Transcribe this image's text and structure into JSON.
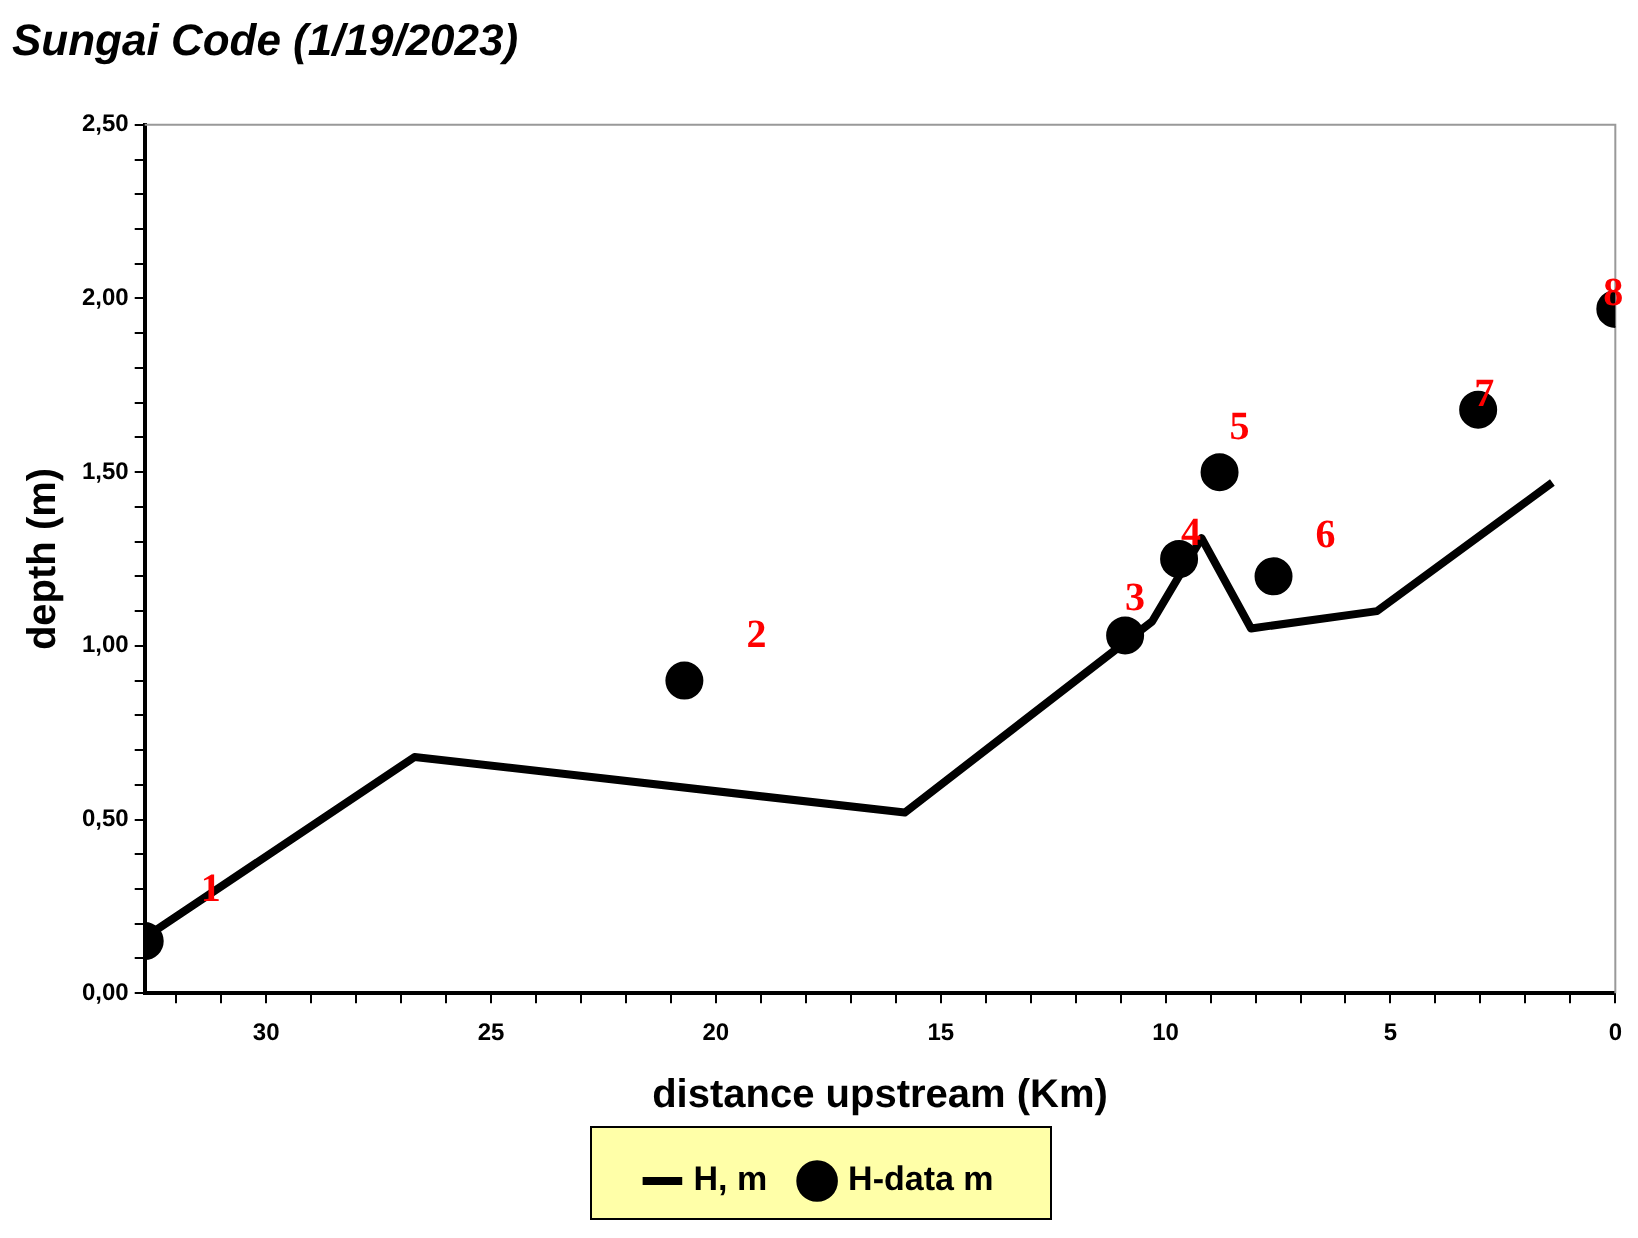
{
  "chart_data": {
    "type": "line",
    "title": "Sungai Code (1/19/2023)",
    "xlabel": "distance upstream (Km)",
    "ylabel": "depth (m)",
    "xlim": [
      32.7,
      0
    ],
    "ylim": [
      0,
      2.5
    ],
    "xticks": [
      {
        "value": 32,
        "label": null
      },
      {
        "value": 31,
        "label": null
      },
      30,
      {
        "value": 29,
        "label": null
      },
      {
        "value": 28,
        "label": null
      },
      {
        "value": 27,
        "label": null
      },
      {
        "value": 26,
        "label": null
      },
      25,
      {
        "value": 24,
        "label": null
      },
      {
        "value": 23,
        "label": null
      },
      {
        "value": 22,
        "label": null
      },
      {
        "value": 21,
        "label": null
      },
      20,
      {
        "value": 19,
        "label": null
      },
      {
        "value": 18,
        "label": null
      },
      {
        "value": 17,
        "label": null
      },
      {
        "value": 16,
        "label": null
      },
      15,
      {
        "value": 14,
        "label": null
      },
      {
        "value": 13,
        "label": null
      },
      {
        "value": 12,
        "label": null
      },
      {
        "value": 11,
        "label": null
      },
      10,
      {
        "value": 9,
        "label": null
      },
      {
        "value": 8,
        "label": null
      },
      {
        "value": 7,
        "label": null
      },
      {
        "value": 6,
        "label": null
      },
      5,
      {
        "value": 4,
        "label": null
      },
      {
        "value": 3,
        "label": null
      },
      {
        "value": 2,
        "label": null
      },
      {
        "value": 1,
        "label": null
      },
      0
    ],
    "yticks": [
      {
        "value": 0,
        "label": "0,00"
      },
      {
        "value": 0.1,
        "label": null
      },
      {
        "value": 0.2,
        "label": null
      },
      {
        "value": 0.3,
        "label": null
      },
      {
        "value": 0.4,
        "label": null
      },
      {
        "value": 0.5,
        "label": "0,50"
      },
      {
        "value": 0.6,
        "label": null
      },
      {
        "value": 0.7,
        "label": null
      },
      {
        "value": 0.8,
        "label": null
      },
      {
        "value": 0.9,
        "label": null
      },
      {
        "value": 1,
        "label": "1,00"
      },
      {
        "value": 1.1,
        "label": null
      },
      {
        "value": 1.2,
        "label": null
      },
      {
        "value": 1.3,
        "label": null
      },
      {
        "value": 1.4,
        "label": null
      },
      {
        "value": 1.5,
        "label": "1,50"
      },
      {
        "value": 1.6,
        "label": null
      },
      {
        "value": 1.7,
        "label": null
      },
      {
        "value": 1.8,
        "label": null
      },
      {
        "value": 1.9,
        "label": null
      },
      {
        "value": 2,
        "label": "2,00"
      },
      {
        "value": 2.1,
        "label": null
      },
      {
        "value": 2.2,
        "label": null
      },
      {
        "value": 2.3,
        "label": null
      },
      {
        "value": 2.4,
        "label": null
      },
      {
        "value": 2.5,
        "label": "2,50"
      }
    ],
    "grid": false,
    "legend": "bottom",
    "series": [
      {
        "name": "H, m",
        "type": "line",
        "marker": "none",
        "line_style": "solid",
        "color": "#000000",
        "x": [
          32.7,
          26.7,
          15.8,
          10.3,
          9.2,
          8.1,
          5.3,
          1.4
        ],
        "values": [
          0.16,
          0.68,
          0.52,
          1.07,
          1.31,
          1.05,
          1.1,
          1.47
        ]
      },
      {
        "name": "H-data m",
        "type": "scatter",
        "marker": "circle",
        "color": "#000000",
        "x": [
          32.7,
          20.7,
          10.9,
          9.7,
          8.8,
          7.6,
          3.05,
          0
        ],
        "values": [
          0.15,
          0.9,
          1.03,
          1.25,
          1.5,
          1.2,
          1.68,
          1.97
        ]
      }
    ],
    "annotations": [
      {
        "text": "1",
        "x": 32.7,
        "y": 0.15
      },
      {
        "text": "2",
        "x": 20.7,
        "y": 0.9
      },
      {
        "text": "3",
        "x": 10.9,
        "y": 1.03
      },
      {
        "text": "4",
        "x": 9.7,
        "y": 1.25
      },
      {
        "text": "5",
        "x": 8.8,
        "y": 1.5
      },
      {
        "text": "6",
        "x": 7.6,
        "y": 1.2
      },
      {
        "text": "7",
        "x": 3.05,
        "y": 1.68
      },
      {
        "text": "8",
        "x": 0,
        "y": 1.97
      }
    ]
  }
}
